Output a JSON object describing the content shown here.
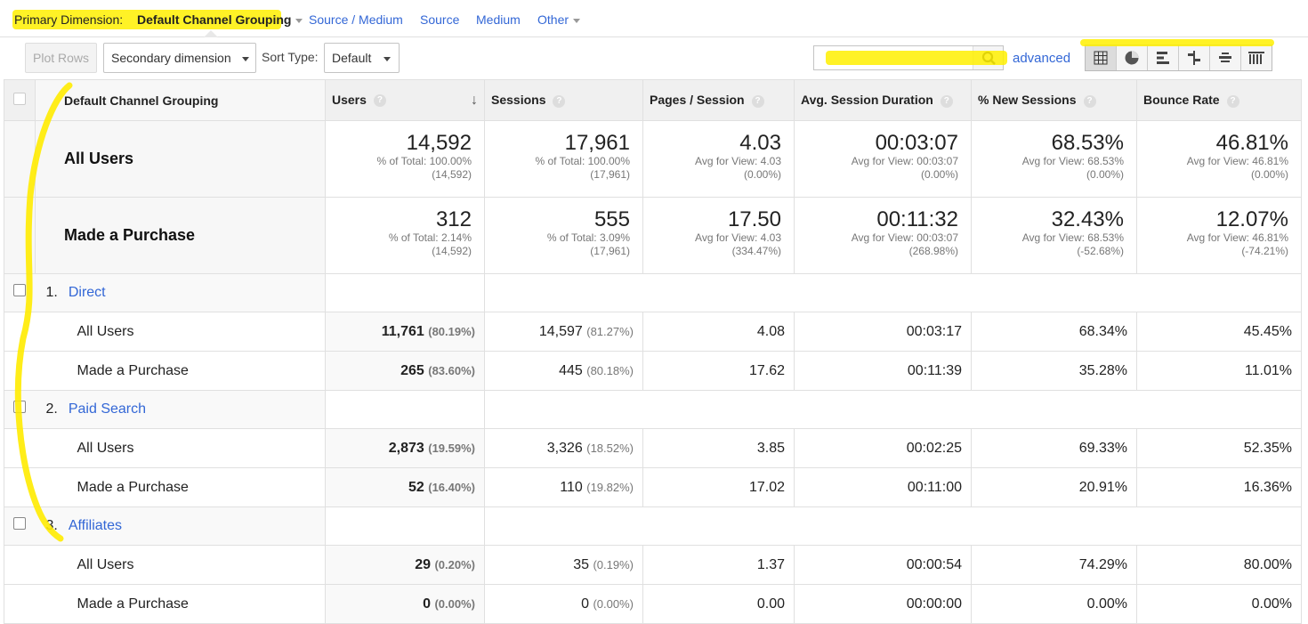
{
  "primary_dimension": {
    "label": "Primary Dimension:",
    "selected": "Default Channel Grouping",
    "links": [
      "Source / Medium",
      "Source",
      "Medium",
      "Other"
    ]
  },
  "toolbar": {
    "plot_rows": "Plot Rows",
    "secondary_dimension": "Secondary dimension",
    "sort_type_label": "Sort Type:",
    "sort_type_value": "Default",
    "search_value": "",
    "advanced": "advanced"
  },
  "table": {
    "columns": [
      "Default Channel Grouping",
      "Users",
      "Sessions",
      "Pages / Session",
      "Avg. Session Duration",
      "% New Sessions",
      "Bounce Rate"
    ],
    "summary": [
      {
        "label": "All Users",
        "cells": [
          {
            "big": "14,592",
            "sub1": "% of Total: 100.00%",
            "sub2": "(14,592)"
          },
          {
            "big": "17,961",
            "sub1": "% of Total: 100.00%",
            "sub2": "(17,961)"
          },
          {
            "big": "4.03",
            "sub1": "Avg for View: 4.03",
            "sub2": "(0.00%)"
          },
          {
            "big": "00:03:07",
            "sub1": "Avg for View: 00:03:07",
            "sub2": "(0.00%)"
          },
          {
            "big": "68.53%",
            "sub1": "Avg for View: 68.53%",
            "sub2": "(0.00%)"
          },
          {
            "big": "46.81%",
            "sub1": "Avg for View: 46.81%",
            "sub2": "(0.00%)"
          }
        ]
      },
      {
        "label": "Made a Purchase",
        "cells": [
          {
            "big": "312",
            "sub1": "% of Total: 2.14%",
            "sub2": "(14,592)"
          },
          {
            "big": "555",
            "sub1": "% of Total: 3.09%",
            "sub2": "(17,961)"
          },
          {
            "big": "17.50",
            "sub1": "Avg for View: 4.03",
            "sub2": "(334.47%)"
          },
          {
            "big": "00:11:32",
            "sub1": "Avg for View: 00:03:07",
            "sub2": "(268.98%)"
          },
          {
            "big": "32.43%",
            "sub1": "Avg for View: 68.53%",
            "sub2": "(-52.68%)"
          },
          {
            "big": "12.07%",
            "sub1": "Avg for View: 46.81%",
            "sub2": "(-74.21%)"
          }
        ]
      }
    ],
    "groups": [
      {
        "index": "1.",
        "name": "Direct",
        "rows": [
          {
            "label": "All Users",
            "users": "11,761",
            "users_pct": "(80.19%)",
            "sessions": "14,597",
            "sessions_pct": "(81.27%)",
            "pps": "4.08",
            "dur": "00:03:17",
            "new": "68.34%",
            "bounce": "45.45%"
          },
          {
            "label": "Made a Purchase",
            "users": "265",
            "users_pct": "(83.60%)",
            "sessions": "445",
            "sessions_pct": "(80.18%)",
            "pps": "17.62",
            "dur": "00:11:39",
            "new": "35.28%",
            "bounce": "11.01%"
          }
        ]
      },
      {
        "index": "2.",
        "name": "Paid Search",
        "rows": [
          {
            "label": "All Users",
            "users": "2,873",
            "users_pct": "(19.59%)",
            "sessions": "3,326",
            "sessions_pct": "(18.52%)",
            "pps": "3.85",
            "dur": "00:02:25",
            "new": "69.33%",
            "bounce": "52.35%"
          },
          {
            "label": "Made a Purchase",
            "users": "52",
            "users_pct": "(16.40%)",
            "sessions": "110",
            "sessions_pct": "(19.82%)",
            "pps": "17.02",
            "dur": "00:11:00",
            "new": "20.91%",
            "bounce": "16.36%"
          }
        ]
      },
      {
        "index": "3.",
        "name": "Affiliates",
        "rows": [
          {
            "label": "All Users",
            "users": "29",
            "users_pct": "(0.20%)",
            "sessions": "35",
            "sessions_pct": "(0.19%)",
            "pps": "1.37",
            "dur": "00:00:54",
            "new": "74.29%",
            "bounce": "80.00%"
          },
          {
            "label": "Made a Purchase",
            "users": "0",
            "users_pct": "(0.00%)",
            "sessions": "0",
            "sessions_pct": "(0.00%)",
            "pps": "0.00",
            "dur": "00:00:00",
            "new": "0.00%",
            "bounce": "0.00%"
          }
        ]
      }
    ]
  },
  "view_buttons": [
    "table-view-icon",
    "pie-view-icon",
    "bar-view-icon",
    "comparison-view-icon",
    "term-cloud-icon",
    "pivot-view-icon"
  ],
  "colors": {
    "link": "#3367d6",
    "highlight": "#fff000"
  }
}
